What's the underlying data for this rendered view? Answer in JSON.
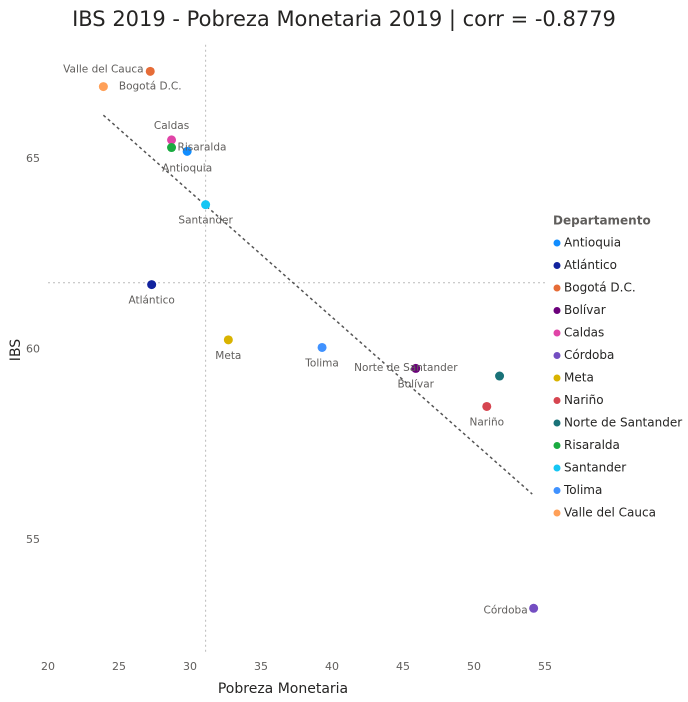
{
  "chart_data": {
    "type": "scatter",
    "title": "IBS 2019 - Pobreza Monetaria 2019 | corr = -0.8779",
    "x_label": "Pobreza Monetaria",
    "y_label": "IBS",
    "legend_title": "Departamento",
    "legend_position": "right",
    "xlim": [
      20,
      55
    ],
    "xticks": [
      20,
      25,
      30,
      35,
      40,
      45,
      50,
      55
    ],
    "ylim": [
      52,
      68
    ],
    "yticks": [
      55,
      60,
      65
    ],
    "reference_lines": {
      "x": 31.1,
      "y": 61.75
    },
    "trend_line": {
      "x": [
        23.9,
        54.1
      ],
      "values": [
        66.15,
        56.2
      ]
    },
    "series": [
      {
        "name": "Antioquia",
        "color": "#118DFF",
        "x": [
          29.8
        ],
        "values": [
          65.2
        ]
      },
      {
        "name": "Atlántico",
        "color": "#12239E",
        "x": [
          27.3
        ],
        "values": [
          61.7
        ]
      },
      {
        "name": "Bogotá D.C.",
        "color": "#E66C37",
        "x": [
          27.2
        ],
        "values": [
          67.3
        ]
      },
      {
        "name": "Bolívar",
        "color": "#6B007B",
        "x": [
          45.9
        ],
        "values": [
          59.5
        ]
      },
      {
        "name": "Caldas",
        "color": "#E044A7",
        "x": [
          28.7
        ],
        "values": [
          65.5
        ]
      },
      {
        "name": "Córdoba",
        "color": "#744EC2",
        "x": [
          54.2
        ],
        "values": [
          53.2
        ]
      },
      {
        "name": "Meta",
        "color": "#D9B300",
        "x": [
          32.7
        ],
        "values": [
          60.25
        ]
      },
      {
        "name": "Nariño",
        "color": "#D64550",
        "x": [
          50.9
        ],
        "values": [
          58.5
        ]
      },
      {
        "name": "Norte de Santander",
        "color": "#197278",
        "x": [
          51.8
        ],
        "values": [
          59.3
        ]
      },
      {
        "name": "Risaralda",
        "color": "#1AAB40",
        "x": [
          28.7
        ],
        "values": [
          65.3
        ]
      },
      {
        "name": "Santander",
        "color": "#15C6F4",
        "x": [
          31.1
        ],
        "values": [
          63.8
        ]
      },
      {
        "name": "Tolima",
        "color": "#4092FF",
        "x": [
          39.3
        ],
        "values": [
          60.05
        ]
      },
      {
        "name": "Valle del Cauca",
        "color": "#FFA058",
        "x": [
          23.9
        ],
        "values": [
          66.9
        ]
      }
    ]
  }
}
